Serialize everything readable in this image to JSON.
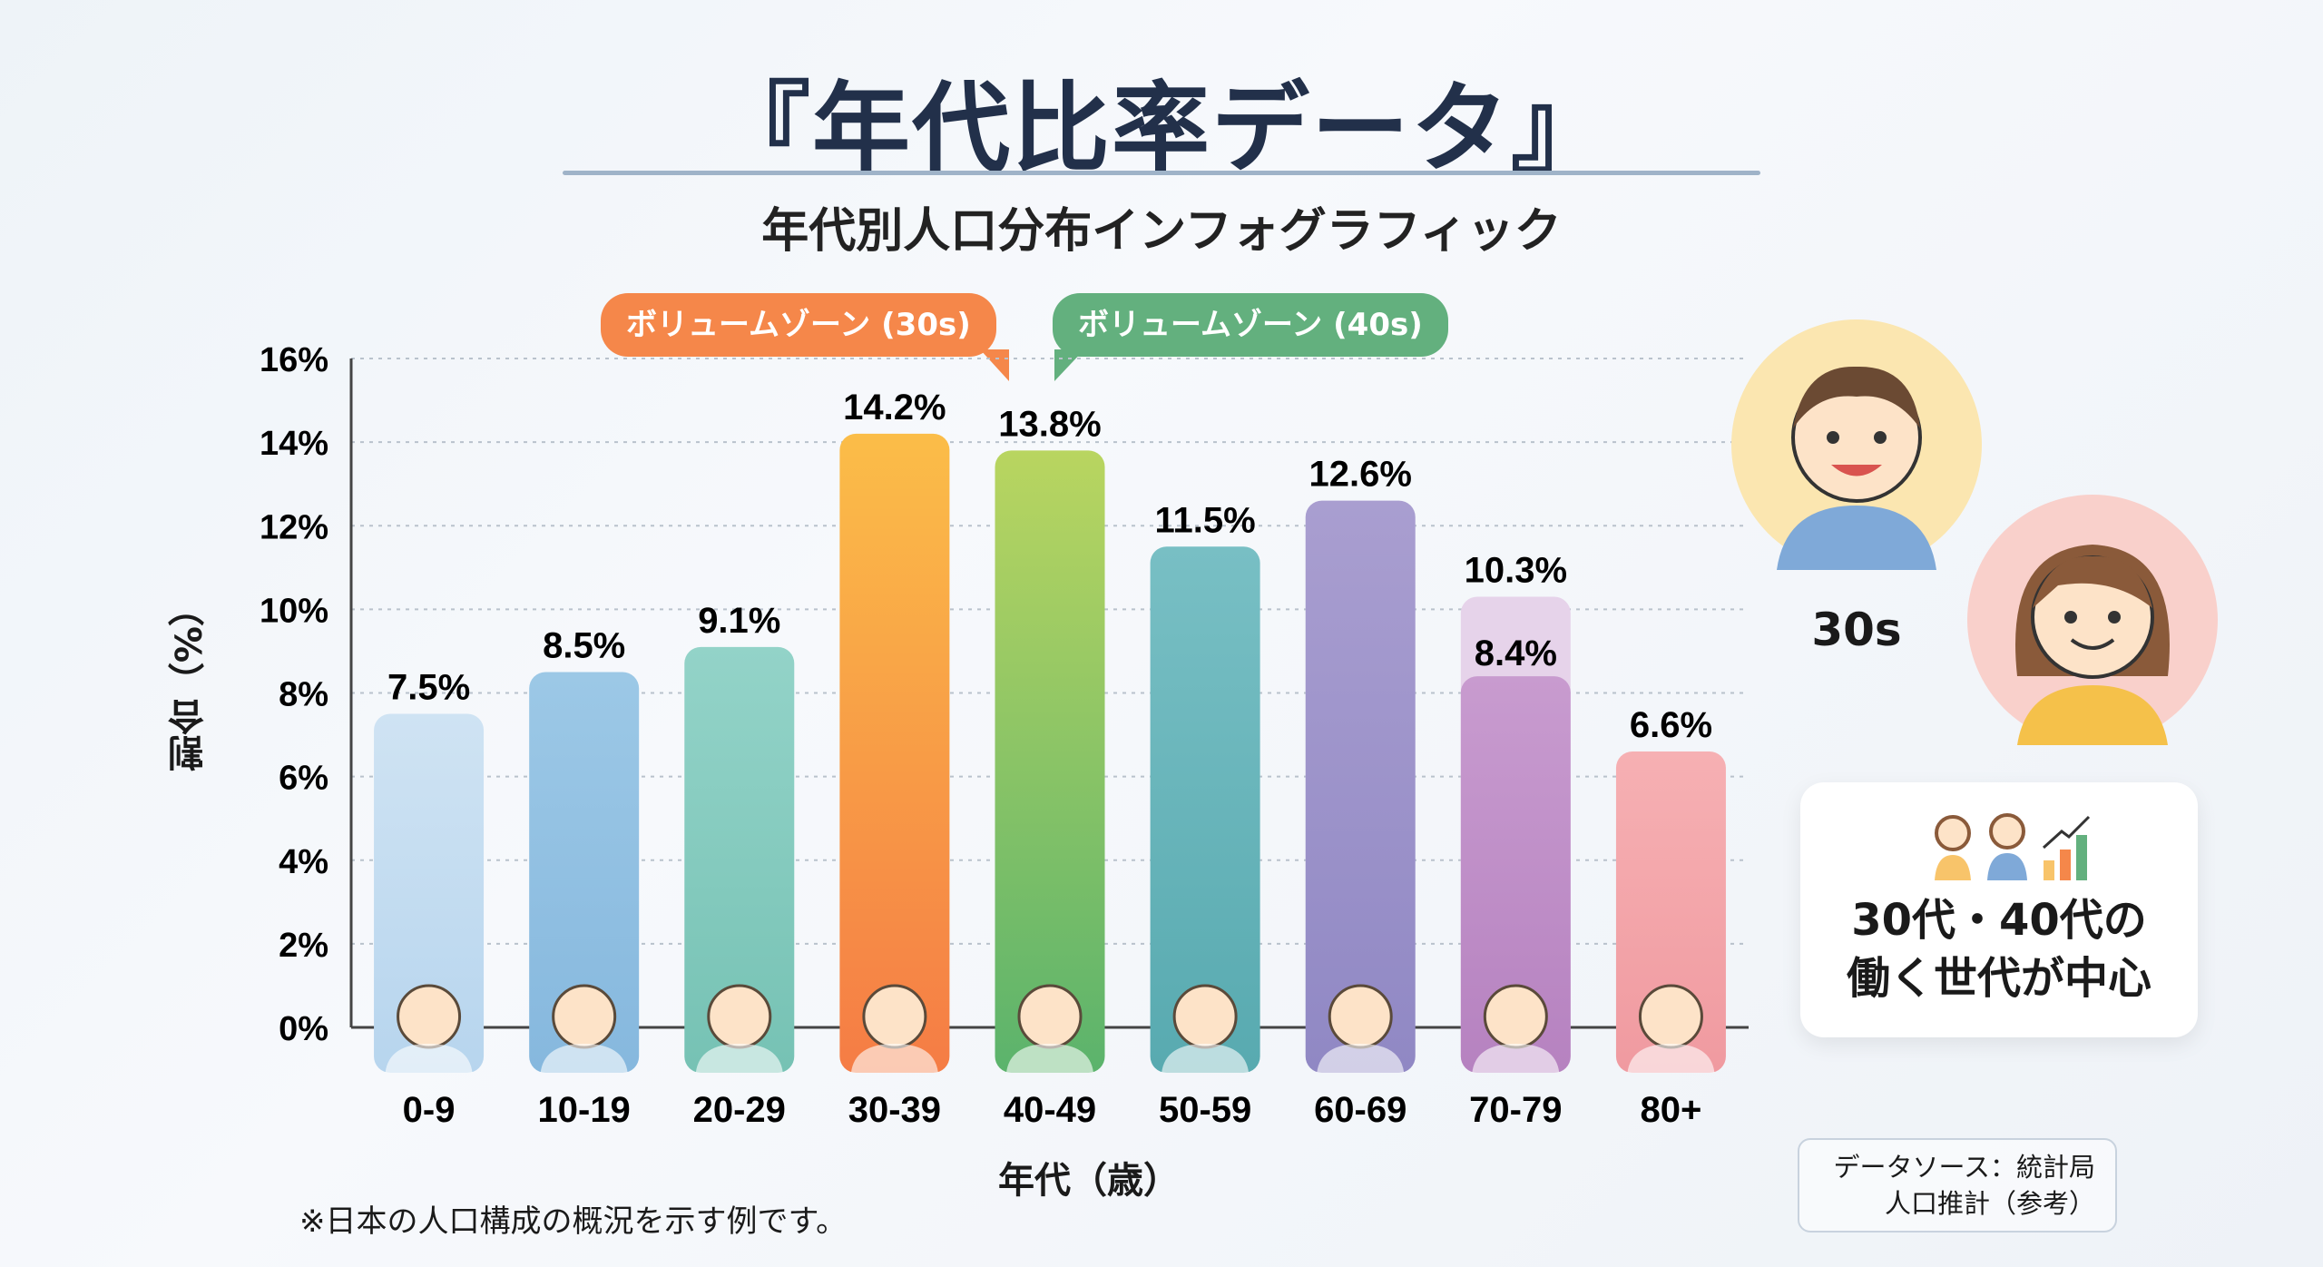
{
  "title": "『年代比率データ』",
  "subtitle": "年代別人口分布インフォグラフィック",
  "callouts": {
    "zone30": "ボリュームゾーン (30s)",
    "zone40": "ボリュームゾーン (40s)"
  },
  "side": {
    "avatar_label": "30s",
    "card_text_1": "30代・40代の",
    "card_text_2": "働く世代が中心",
    "source_1": "データソース：統計局",
    "source_2": "人口推計（参考）"
  },
  "footnote": "※日本の人口構成の概況を示す例です。",
  "colors": {
    "zone30": "#f5874a",
    "zone40": "#63b07e"
  },
  "chart_data": {
    "type": "bar",
    "xlabel": "年代（歳）",
    "ylabel": "割合（%）",
    "ylim": [
      0,
      16
    ],
    "yticks": [
      "0%",
      "2%",
      "4%",
      "6%",
      "8%",
      "10%",
      "12%",
      "14%",
      "16%"
    ],
    "grid": true,
    "categories": [
      "0-9",
      "10-19",
      "20-29",
      "30-39",
      "40-49",
      "50-59",
      "60-69",
      "70-79",
      "80+"
    ],
    "values": [
      7.5,
      8.5,
      9.1,
      14.2,
      13.8,
      11.5,
      12.6,
      10.3,
      6.6
    ],
    "labels": [
      "7.5%",
      "8.5%",
      "9.1%",
      "14.2%",
      "13.8%",
      "11.5%",
      "12.6%",
      "10.3%",
      "6.6%"
    ],
    "secondary": {
      "category": "70-79",
      "value": 8.4,
      "label": "8.4%"
    },
    "bar_colors": [
      [
        "#cfe3f3",
        "#b7d5ee"
      ],
      [
        "#9cc8e6",
        "#86b8de"
      ],
      [
        "#93d3c8",
        "#76c2b4"
      ],
      [
        "#fbbd48",
        "#f57c45"
      ],
      [
        "#b9d560",
        "#5bb36c"
      ],
      [
        "#78bfc4",
        "#58aab0"
      ],
      [
        "#a99ed0",
        "#9088c4"
      ],
      [
        "#c89bcf",
        "#b682c0"
      ],
      [
        "#f6b0b3",
        "#f09aa0"
      ]
    ]
  }
}
